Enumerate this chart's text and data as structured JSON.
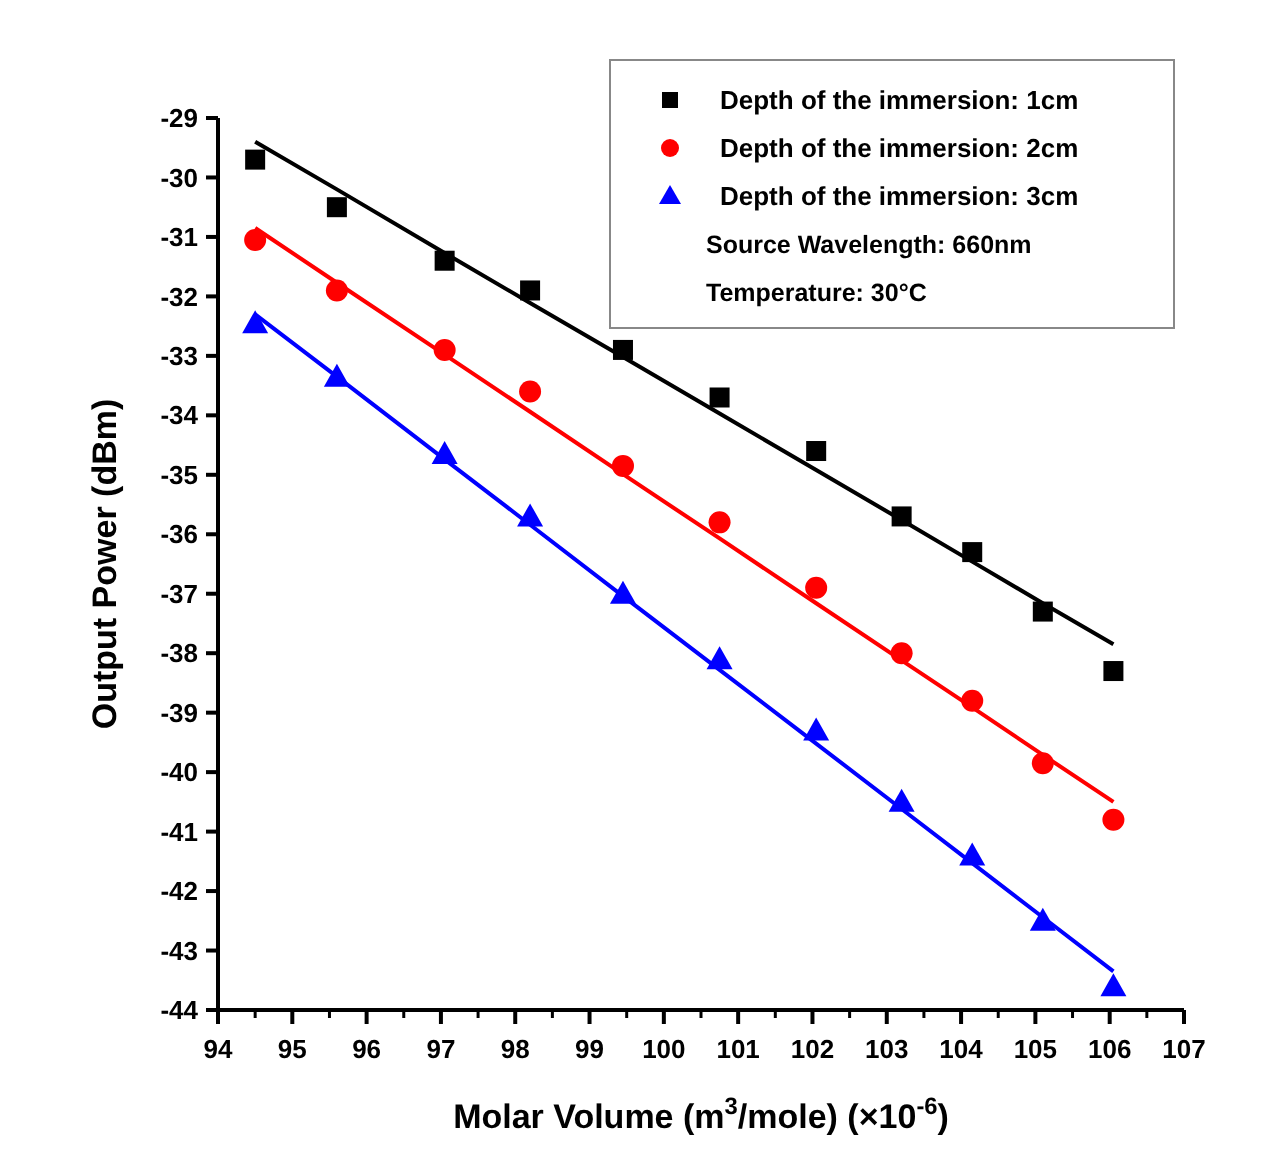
{
  "chart_data": {
    "type": "scatter",
    "xlabel": "Molar Volume (m$^{3}$/mole) (×10$^{-6}$)",
    "ylabel": "Output Power (dBm)",
    "x": [
      94.5,
      95.6,
      97.05,
      98.2,
      99.45,
      100.75,
      102.05,
      103.2,
      104.15,
      105.1,
      106.05
    ],
    "series": [
      {
        "name": "Depth of the immersion: 1cm",
        "color": "#000000",
        "marker": "square",
        "values": [
          -29.7,
          -30.5,
          -31.4,
          -31.9,
          -32.9,
          -33.7,
          -34.6,
          -35.7,
          -36.3,
          -37.3,
          -38.3
        ]
      },
      {
        "name": "Depth of the immersion: 2cm",
        "color": "#ff0000",
        "marker": "circle",
        "values": [
          -31.05,
          -31.9,
          -32.9,
          -33.6,
          -34.85,
          -35.8,
          -36.9,
          -38.0,
          -38.8,
          -39.85,
          -40.8
        ]
      },
      {
        "name": "Depth of the immersion: 3cm",
        "color": "#0000ff",
        "marker": "triangle",
        "values": [
          -32.45,
          -33.35,
          -34.65,
          -35.7,
          -37.0,
          -38.1,
          -39.3,
          -40.5,
          -41.4,
          -42.5,
          -43.6
        ]
      },
      {
        "type": "line",
        "color": "#000000",
        "marker": "none",
        "values": [
          -29.4,
          -30.2,
          -31.27,
          -32.11,
          -33.02,
          -33.97,
          -34.92,
          -35.76,
          -36.46,
          -37.16,
          -37.85
        ]
      },
      {
        "type": "line",
        "color": "#ff0000",
        "marker": "none",
        "values": [
          -30.85,
          -31.77,
          -32.98,
          -33.94,
          -34.99,
          -36.07,
          -37.16,
          -38.12,
          -38.91,
          -39.71,
          -40.5
        ]
      },
      {
        "type": "line",
        "color": "#0000ff",
        "marker": "none",
        "values": [
          -32.3,
          -33.35,
          -34.74,
          -35.84,
          -37.04,
          -38.28,
          -39.52,
          -40.62,
          -41.53,
          -42.44,
          -43.35
        ]
      }
    ],
    "annotations": [
      "Source Wavelength: 660nm",
      "Temperature: 30°C"
    ],
    "xlim": [
      94,
      107
    ],
    "xticks": [
      94,
      95,
      96,
      97,
      98,
      99,
      100,
      101,
      102,
      103,
      104,
      105,
      106,
      107
    ],
    "ylim": [
      -44,
      -29
    ],
    "yticks": [
      -44,
      -43,
      -42,
      -41,
      -40,
      -39,
      -38,
      -37,
      -36,
      -35,
      -34,
      -33,
      -32,
      -31,
      -30,
      -29
    ],
    "grid": false,
    "legend": "top right"
  }
}
